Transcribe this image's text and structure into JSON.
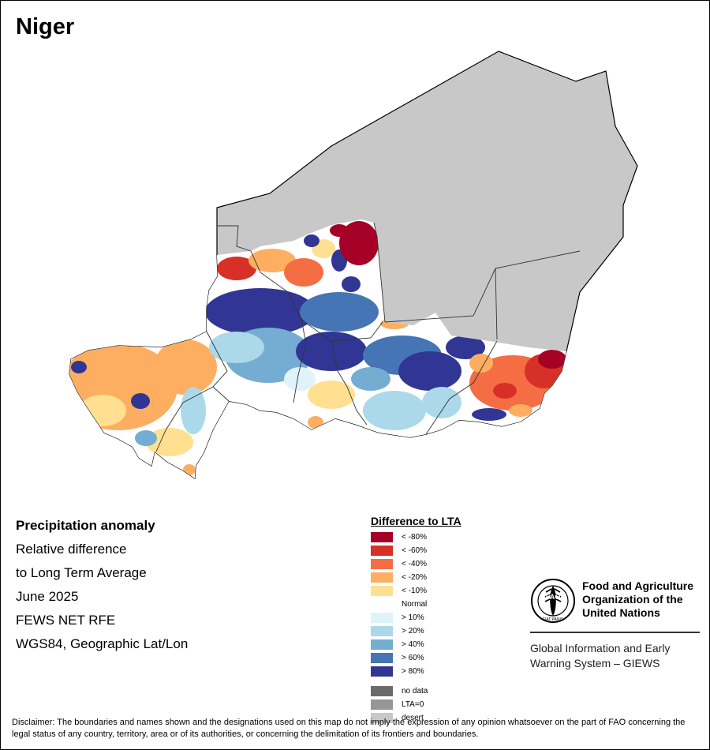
{
  "map": {
    "title": "Niger"
  },
  "info": {
    "heading": "Precipitation anomaly",
    "lines": [
      "Relative difference",
      "to Long Term Average",
      "June 2025",
      "FEWS NET RFE",
      "WGS84, Geographic Lat/Lon"
    ]
  },
  "legend": {
    "title": "Difference to LTA",
    "classes": [
      {
        "label": "< -80%",
        "color": "#a50026"
      },
      {
        "label": "< -60%",
        "color": "#d73027"
      },
      {
        "label": "< -40%",
        "color": "#f46d43"
      },
      {
        "label": "< -20%",
        "color": "#fdae61"
      },
      {
        "label": "< -10%",
        "color": "#fee090"
      },
      {
        "label": "Normal",
        "color": "#ffffff"
      },
      {
        "label": "> 10%",
        "color": "#e0f3f8"
      },
      {
        "label": "> 20%",
        "color": "#abd9e9"
      },
      {
        "label": "> 40%",
        "color": "#74add1"
      },
      {
        "label": "> 60%",
        "color": "#4575b4"
      },
      {
        "label": "> 80%",
        "color": "#313695"
      }
    ],
    "extra": [
      {
        "label": "no data",
        "color": "#6b6b6b"
      },
      {
        "label": "LTA=0",
        "color": "#969696"
      },
      {
        "label": "desert",
        "color": "#c8c8c8"
      }
    ]
  },
  "fao": {
    "logo_text": "FAO",
    "logo_motto": "FIAT PANIS",
    "name": "Food and Agriculture Organization of the United Nations",
    "giews_line1": "Global Information and Early",
    "giews_line2": "Warning System – GIEWS"
  },
  "disclaimer": "Disclaimer: The boundaries and names shown and the designations used on this map do not imply the expression of any opinion whatsoever on the part of FAO concerning the legal status of any country, territory, area or of its authorities, or concerning the delimitation of its frontiers and boundaries.",
  "colors": {
    "desert": "#c8c8c8",
    "border": "#000000"
  }
}
